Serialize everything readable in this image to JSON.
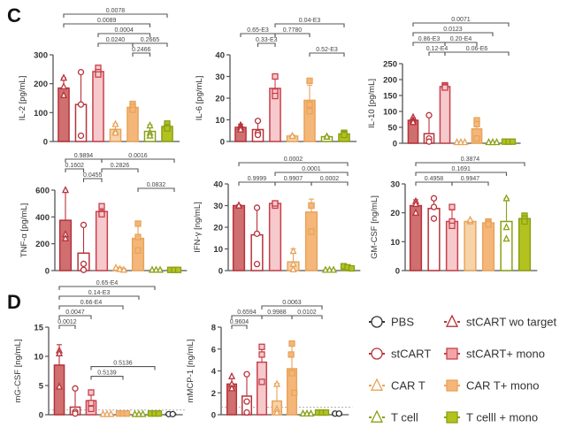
{
  "panels": {
    "C": "C",
    "D": "D"
  },
  "groups": [
    {
      "key": "stcart_wo",
      "label": "stCART wo target",
      "marker": "triangle",
      "stroke": "#b8323a",
      "fill": "#cf6f6f"
    },
    {
      "key": "stcart",
      "label": "stCART",
      "marker": "circle",
      "stroke": "#b8323a",
      "fill": "#ffffff"
    },
    {
      "key": "stcart_mono",
      "label": "stCART+ mono",
      "marker": "square",
      "stroke": "#c8404a",
      "fill": "#f6c9cc"
    },
    {
      "key": "cart",
      "label": "CAR T",
      "marker": "triangle",
      "stroke": "#e9a35a",
      "fill": "#f7d3a8"
    },
    {
      "key": "cart_mono",
      "label": "CAR T+ mono",
      "marker": "square",
      "stroke": "#e9a35a",
      "fill": "#f4b779"
    },
    {
      "key": "tcell",
      "label": "T cell",
      "marker": "triangle",
      "stroke": "#8aa016",
      "fill": "#ffffff"
    },
    {
      "key": "tcell_mono",
      "label": "T celll + mono",
      "marker": "square",
      "stroke": "#8aa016",
      "fill": "#b3c21e"
    },
    {
      "key": "pbs",
      "label": "PBS",
      "marker": "circle",
      "stroke": "#333333",
      "fill": "#ffffff"
    }
  ],
  "legend": {
    "items": [
      {
        "label": "PBS",
        "marker": "circle",
        "stroke": "#333333",
        "fill": "#ffffff"
      },
      {
        "label": "stCART wo target",
        "marker": "triangle",
        "stroke": "#b8323a",
        "fill": "#ffffff"
      },
      {
        "label": "stCART",
        "marker": "circle",
        "stroke": "#b8323a",
        "fill": "#ffffff"
      },
      {
        "label": "stCART+ mono",
        "marker": "square",
        "stroke": "#c8404a",
        "fill": "#f2a5a8"
      },
      {
        "label": "CAR T",
        "marker": "triangle",
        "stroke": "#e9a35a",
        "fill": "#ffffff"
      },
      {
        "label": "CAR T+ mono",
        "marker": "square",
        "stroke": "#e9a35a",
        "fill": "#f4b779"
      },
      {
        "label": "T cell",
        "marker": "triangle",
        "stroke": "#8aa016",
        "fill": "#ffffff"
      },
      {
        "label": "T celll + mono",
        "marker": "square",
        "stroke": "#8aa016",
        "fill": "#b3c21e"
      }
    ]
  },
  "chart_data": [
    {
      "type": "bar",
      "panel": "C",
      "title": "",
      "xlabel": "",
      "ylabel": "IL-2 [pg/mL]",
      "ylim": [
        0,
        300
      ],
      "yticks": [
        0,
        100,
        200,
        300
      ],
      "categories": [
        "stCART wo target",
        "stCART",
        "stCART+ mono",
        "CAR T",
        "CAR T+ mono",
        "T cell",
        "T celll + mono"
      ],
      "values": [
        185,
        128,
        242,
        42,
        118,
        35,
        52
      ],
      "errors": [
        35,
        110,
        18,
        20,
        15,
        22,
        12
      ],
      "points": [
        [
          220,
          190,
          160
        ],
        [
          240,
          128,
          20
        ],
        [
          255,
          240,
          232
        ],
        [
          60,
          35,
          30
        ],
        [
          130,
          120,
          110
        ],
        [
          55,
          30,
          20
        ],
        [
          62,
          50,
          45
        ]
      ],
      "comparisons": [
        {
          "from": 0,
          "to": 6,
          "label": "0.0078",
          "level": 4
        },
        {
          "from": 0,
          "to": 5,
          "label": "0.0089",
          "level": 3
        },
        {
          "from": 2,
          "to": 5,
          "label": "0.0004",
          "level": 2
        },
        {
          "from": 2,
          "to": 4,
          "label": "0.0240",
          "level": 1
        },
        {
          "from": 4,
          "to": 6,
          "label": "0.2665",
          "level": 1
        },
        {
          "from": 4,
          "to": 5,
          "label": "0.2466",
          "level": 0
        }
      ]
    },
    {
      "type": "bar",
      "panel": "C",
      "title": "",
      "xlabel": "",
      "ylabel": "IL-6 [pg/mL]",
      "ylim": [
        0,
        40
      ],
      "yticks": [
        0,
        10,
        20,
        30,
        40
      ],
      "categories": [
        "stCART wo target",
        "stCART",
        "stCART+ mono",
        "CAR T",
        "CAR T+ mono",
        "T cell",
        "T celll + mono"
      ],
      "values": [
        6.5,
        5.5,
        24.5,
        2.5,
        19,
        2.2,
        3.5
      ],
      "errors": [
        1.5,
        4,
        6,
        0.5,
        7,
        0.3,
        1
      ],
      "points": [
        [
          7.5,
          6.5,
          5.5
        ],
        [
          9.5,
          4,
          3
        ],
        [
          30,
          23,
          21
        ],
        [
          2.5,
          2.5,
          2.5
        ],
        [
          28,
          17,
          14
        ],
        [
          2.2,
          2.2,
          2.2
        ],
        [
          4,
          3.5,
          3
        ]
      ],
      "comparisons": [
        {
          "from": 2,
          "to": 6,
          "label": "0.04-E3",
          "level": 3
        },
        {
          "from": 0,
          "to": 2,
          "label": "0.65-E3",
          "level": 2
        },
        {
          "from": 2,
          "to": 4,
          "label": "0.7780",
          "level": 2
        },
        {
          "from": 1,
          "to": 2,
          "label": "0.33-E3",
          "level": 1
        },
        {
          "from": 4,
          "to": 6,
          "label": "0.52-E3",
          "level": 0
        }
      ]
    },
    {
      "type": "bar",
      "panel": "C",
      "title": "",
      "xlabel": "",
      "ylabel": "IL-10 [pg/mL]",
      "ylim": [
        0,
        250
      ],
      "yticks": [
        0,
        50,
        100,
        150,
        200,
        250
      ],
      "categories": [
        "stCART wo target",
        "stCART",
        "stCART+ mono",
        "CAR T",
        "CAR T+ mono",
        "T cell",
        "T celll + mono"
      ],
      "values": [
        72,
        30,
        178,
        3,
        45,
        3,
        5
      ],
      "errors": [
        8,
        55,
        5,
        1,
        30,
        1,
        1
      ],
      "points": [
        [
          82,
          72,
          66
        ],
        [
          88,
          15,
          5
        ],
        [
          182,
          178,
          175
        ],
        [
          3,
          3,
          3
        ],
        [
          72,
          60,
          15
        ],
        [
          3,
          3,
          3
        ],
        [
          5,
          5,
          5
        ]
      ],
      "comparisons": [
        {
          "from": 0,
          "to": 6,
          "label": "0.0071",
          "level": 4
        },
        {
          "from": 0,
          "to": 5,
          "label": "0.0123",
          "level": 3
        },
        {
          "from": 0,
          "to": 2,
          "label": "0.86-E3",
          "level": 2
        },
        {
          "from": 2,
          "to": 4,
          "label": "0.20-E4",
          "level": 2
        },
        {
          "from": 1,
          "to": 2,
          "label": "0.12-E4",
          "level": 1
        },
        {
          "from": 2,
          "to": 6,
          "label": "0.06-E6",
          "level": 1
        }
      ]
    },
    {
      "type": "bar",
      "panel": "C",
      "title": "",
      "xlabel": "",
      "ylabel": "TNF-α [pg/mL]",
      "ylim": [
        0,
        600
      ],
      "yticks": [
        0,
        200,
        400,
        600
      ],
      "categories": [
        "stCART wo target",
        "stCART",
        "stCART+ mono",
        "CAR T",
        "CAR T+ mono",
        "T cell",
        "T celll + mono"
      ],
      "values": [
        375,
        130,
        440,
        15,
        240,
        5,
        5
      ],
      "errors": [
        220,
        210,
        40,
        10,
        110,
        2,
        2
      ],
      "points": [
        [
          600,
          270,
          240
        ],
        [
          340,
          50,
          5
        ],
        [
          480,
          430,
          420
        ],
        [
          20,
          10,
          5
        ],
        [
          350,
          250,
          150
        ],
        [
          5,
          5,
          5
        ],
        [
          5,
          5,
          5
        ]
      ],
      "comparisons": [
        {
          "from": 0,
          "to": 2,
          "label": "0.9894",
          "level": 3
        },
        {
          "from": 2,
          "to": 6,
          "label": "0.0016",
          "level": 3
        },
        {
          "from": 0,
          "to": 1,
          "label": "0.1602",
          "level": 2
        },
        {
          "from": 2,
          "to": 4,
          "label": "0.2826",
          "level": 2
        },
        {
          "from": 1,
          "to": 2,
          "label": "0.0455",
          "level": 1
        },
        {
          "from": 4,
          "to": 6,
          "label": "0.0832",
          "level": 0
        }
      ]
    },
    {
      "type": "bar",
      "panel": "C",
      "title": "",
      "xlabel": "",
      "ylabel": "IFN-γ [ng/mL]",
      "ylim": [
        0,
        40
      ],
      "yticks": [
        0,
        10,
        20,
        30,
        40
      ],
      "categories": [
        "stCART wo target",
        "stCART",
        "stCART+ mono",
        "CAR T",
        "CAR T+ mono",
        "T cell",
        "T celll + mono"
      ],
      "values": [
        30,
        16.5,
        31,
        4,
        27,
        0.3,
        1.5
      ],
      "errors": [
        0.3,
        13,
        0.5,
        6,
        6,
        0.2,
        0.8
      ],
      "points": [
        [
          30,
          30,
          30
        ],
        [
          29,
          17,
          3
        ],
        [
          31,
          30,
          31
        ],
        [
          9,
          3,
          0.5
        ],
        [
          30,
          30,
          18
        ],
        [
          0.3,
          0.3,
          0.3
        ],
        [
          2,
          1.5,
          1
        ]
      ],
      "comparisons": [
        {
          "from": 0,
          "to": 6,
          "label": "0.0002",
          "level": 2
        },
        {
          "from": 2,
          "to": 6,
          "label": "0.0001",
          "level": 1
        },
        {
          "from": 0,
          "to": 2,
          "label": "0.9999",
          "level": 0
        },
        {
          "from": 2,
          "to": 4,
          "label": "0.9907",
          "level": 0
        },
        {
          "from": 4,
          "to": 6,
          "label": "0.0002",
          "level": 0
        }
      ]
    },
    {
      "type": "bar",
      "panel": "C",
      "title": "",
      "xlabel": "",
      "ylabel": "GM-CSF [ng/mL]",
      "ylim": [
        0,
        30
      ],
      "yticks": [
        0,
        10,
        20,
        30
      ],
      "categories": [
        "stCART wo target",
        "stCART",
        "stCART+ mono",
        "CAR T",
        "CAR T+ mono",
        "T cell",
        "T celll + mono"
      ],
      "values": [
        22.5,
        21.5,
        17,
        17,
        16.5,
        17,
        18
      ],
      "errors": [
        2,
        3,
        4,
        0.5,
        0.8,
        8,
        1.5
      ],
      "points": [
        [
          24,
          23,
          20
        ],
        [
          25,
          22,
          18
        ],
        [
          22,
          17,
          15.5
        ],
        [
          17.5,
          17,
          17.5
        ],
        [
          17,
          16.5,
          16
        ],
        [
          25,
          15,
          11
        ],
        [
          19,
          18,
          17
        ]
      ],
      "comparisons": [
        {
          "from": 0,
          "to": 6,
          "label": "0.3874",
          "level": 2
        },
        {
          "from": 0,
          "to": 5,
          "label": "0.1691",
          "level": 1
        },
        {
          "from": 0,
          "to": 2,
          "label": "0.4958",
          "level": 0
        },
        {
          "from": 2,
          "to": 4,
          "label": "0.9947",
          "level": 0
        }
      ]
    },
    {
      "type": "bar",
      "panel": "D",
      "title": "",
      "xlabel": "",
      "ylabel": "mG-CSF [ng/mL]",
      "ylim": [
        0,
        15
      ],
      "yticks": [
        0,
        5,
        10,
        15
      ],
      "categories": [
        "stCART wo target",
        "stCART",
        "stCART+ mono",
        "CAR T",
        "CAR T+ mono",
        "T cell",
        "T celll + mono",
        "PBS"
      ],
      "values": [
        8.5,
        1.3,
        2.4,
        0.1,
        0.2,
        0.1,
        0.2,
        0.1
      ],
      "errors": [
        3.5,
        3,
        1.5,
        0.05,
        0.05,
        0.05,
        0.05,
        0.05
      ],
      "points": [
        [
          11,
          10.5,
          4.8
        ],
        [
          4.5,
          0.5,
          0.2
        ],
        [
          3.8,
          2,
          1
        ],
        [
          0.1,
          0.1,
          0.1
        ],
        [
          0.2,
          0.2,
          0.2
        ],
        [
          0.1,
          0.1,
          0.1
        ],
        [
          0.2,
          0.2,
          0.2
        ],
        [
          0.1,
          0.1
        ]
      ],
      "threshold": 0.8,
      "comparisons": [
        {
          "from": 0,
          "to": 6,
          "label": "0.65-E4",
          "level": 4
        },
        {
          "from": 0,
          "to": 5,
          "label": "0.14-E3",
          "level": 3
        },
        {
          "from": 0,
          "to": 4,
          "label": "0.66-E4",
          "level": 2
        },
        {
          "from": 0,
          "to": 2,
          "label": "0.0047",
          "level": 1
        },
        {
          "from": 0,
          "to": 1,
          "label": "0.0012",
          "level": 0
        },
        {
          "from": 2,
          "to": 6,
          "label": "0.5136",
          "level": -1
        },
        {
          "from": 2,
          "to": 4,
          "label": "0.5139",
          "level": -2
        }
      ]
    },
    {
      "type": "bar",
      "panel": "D",
      "title": "",
      "xlabel": "",
      "ylabel": "mMCP-1 [ng/mL]",
      "ylim": [
        0,
        8
      ],
      "yticks": [
        0,
        2,
        4,
        6,
        8
      ],
      "categories": [
        "stCART wo target",
        "stCART",
        "stCART+ mono",
        "CAR T",
        "CAR T+ mono",
        "T cell",
        "T celll + mono",
        "PBS"
      ],
      "values": [
        2.8,
        1.7,
        4.8,
        1.25,
        4.2,
        0.1,
        0.2,
        0.1
      ],
      "errors": [
        0.5,
        2,
        1.5,
        1.6,
        2.3,
        0.05,
        0.05,
        0.05
      ],
      "points": [
        [
          3.5,
          2.8,
          2.4
        ],
        [
          3.7,
          1.2,
          0.2
        ],
        [
          6.2,
          5.5,
          3
        ],
        [
          2.8,
          0.5,
          0.2
        ],
        [
          6.5,
          5.5,
          3.8,
          2
        ],
        [
          0.1,
          0.1,
          0.1
        ],
        [
          0.2,
          0.2,
          0.2
        ],
        [
          0.1,
          0.1
        ]
      ],
      "threshold": 0.7,
      "comparisons": [
        {
          "from": 2,
          "to": 6,
          "label": "0.0063",
          "level": 2
        },
        {
          "from": 0,
          "to": 2,
          "label": "0.6594",
          "level": 1
        },
        {
          "from": 2,
          "to": 4,
          "label": "0.9988",
          "level": 1
        },
        {
          "from": 4,
          "to": 6,
          "label": "0.0102",
          "level": 1
        },
        {
          "from": 0,
          "to": 1,
          "label": "0.9604",
          "level": 0
        }
      ]
    }
  ]
}
